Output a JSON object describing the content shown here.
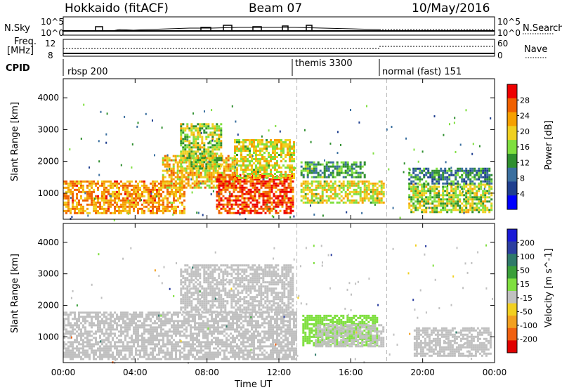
{
  "header": {
    "station": "Hokkaido (fitACF)",
    "beam": "Beam 07",
    "date": "10/May/2016"
  },
  "status_panels": {
    "nsky_label": "N.Sky",
    "nsky_ticks": [
      "10^5",
      "10^0"
    ],
    "nsearch_label": "N.Search",
    "freq_label_1": "Freq.",
    "freq_label_2": "[MHz]",
    "freq_ticks_left": [
      "12",
      "8"
    ],
    "nave_label": "Nave",
    "nave_ticks_right": [
      "60",
      "0"
    ],
    "nsky_right_ticks": [
      "10^5",
      "10^0"
    ],
    "cpid_label": "CPID",
    "modes": [
      {
        "name": "rbsp 200",
        "start": 0.0
      },
      {
        "name": "themis 3300",
        "start": 13.0
      },
      {
        "name": "normal (fast) 151",
        "start": 18.0
      }
    ]
  },
  "colors": {
    "power_scale": [
      "#0000ff",
      "#1f3f8f",
      "#3a6f9f",
      "#2f8f2f",
      "#7fdf3f",
      "#f0d020",
      "#f6a000",
      "#f06000",
      "#ee0000"
    ],
    "velocity_scale": [
      "#1a1ad6",
      "#2c3fa0",
      "#2f7a6a",
      "#3a9f3a",
      "#7fdf3f",
      "#c0c0c0",
      "#f2d020",
      "#f2a020",
      "#f06010",
      "#e00000"
    ],
    "ground_scatter": "#c0c0c0"
  },
  "chart_data": [
    {
      "type": "heatmap",
      "title": "Power",
      "xlabel": "Time UT",
      "ylabel": "Slant Range [km]",
      "x_ticks": [
        "00:00",
        "04:00",
        "08:00",
        "12:00",
        "16:00",
        "20:00",
        "00:00"
      ],
      "y_ticks": [
        "1000",
        "2000",
        "3000",
        "4000"
      ],
      "xlim": [
        0,
        24
      ],
      "ylim": [
        180,
        4600
      ],
      "colorbar_label": "Power [dB]",
      "colorbar_ticks": [
        "4",
        "8",
        "12",
        "16",
        "20",
        "24",
        "28"
      ],
      "colorbar_range": [
        0,
        30
      ],
      "regions": [
        {
          "t0": 0.0,
          "t1": 6.8,
          "r0": 400,
          "r1": 1400,
          "level": 22
        },
        {
          "t0": 5.5,
          "t1": 9.5,
          "r0": 1200,
          "r1": 2200,
          "level": 20
        },
        {
          "t0": 6.5,
          "t1": 8.8,
          "r0": 1800,
          "r1": 3200,
          "level": 16
        },
        {
          "t0": 8.5,
          "t1": 12.8,
          "r0": 400,
          "r1": 1600,
          "level": 26
        },
        {
          "t0": 9.5,
          "t1": 12.8,
          "r0": 1500,
          "r1": 2700,
          "level": 18
        },
        {
          "t0": 13.2,
          "t1": 17.8,
          "r0": 700,
          "r1": 1400,
          "level": 18
        },
        {
          "t0": 13.2,
          "t1": 16.8,
          "r0": 1500,
          "r1": 2000,
          "level": 12
        },
        {
          "t0": 19.2,
          "t1": 23.8,
          "r0": 400,
          "r1": 1300,
          "level": 16
        },
        {
          "t0": 19.2,
          "t1": 23.8,
          "r0": 1300,
          "r1": 1800,
          "level": 10
        }
      ]
    },
    {
      "type": "heatmap",
      "title": "Velocity",
      "xlabel": "Time UT",
      "ylabel": "Slant Range [km]",
      "x_ticks": [
        "00:00",
        "04:00",
        "08:00",
        "12:00",
        "16:00",
        "20:00",
        "00:00"
      ],
      "y_ticks": [
        "1000",
        "2000",
        "3000",
        "4000"
      ],
      "xlim": [
        0,
        24
      ],
      "ylim": [
        180,
        4600
      ],
      "colorbar_label": "Velocity [m s^-1]",
      "colorbar_ticks": [
        "200",
        "100",
        "50",
        "15",
        "-15",
        "-50",
        "-100",
        "-200"
      ],
      "colorbar_range": [
        -250,
        250
      ],
      "regions": [
        {
          "t0": 0.0,
          "t1": 13.0,
          "r0": 300,
          "r1": 1800,
          "velocity": 0
        },
        {
          "t0": 6.5,
          "t1": 12.8,
          "r0": 1800,
          "r1": 3300,
          "velocity": 0
        },
        {
          "t0": 13.3,
          "t1": 17.5,
          "r0": 700,
          "r1": 1700,
          "velocity": 35
        },
        {
          "t0": 14.0,
          "t1": 17.8,
          "r0": 700,
          "r1": 1400,
          "velocity": 0
        },
        {
          "t0": 19.5,
          "t1": 23.8,
          "r0": 400,
          "r1": 1300,
          "velocity": 0
        }
      ]
    }
  ]
}
